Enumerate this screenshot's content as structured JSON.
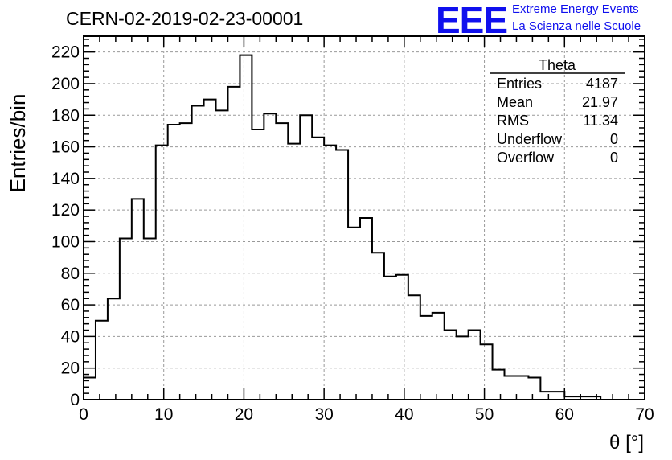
{
  "header": {
    "run_title": "CERN-02-2019-02-23-00001",
    "logo_text": "EEE",
    "logo_line1": "Extreme Energy Events",
    "logo_line2": "La Scienza nelle Scuole",
    "logo_color": "#1010ee"
  },
  "stats_box": {
    "title": "Theta",
    "rows": [
      {
        "label": "Entries",
        "value": "4187"
      },
      {
        "label": "Mean",
        "value": "21.97"
      },
      {
        "label": "RMS",
        "value": "11.34"
      },
      {
        "label": "Underflow",
        "value": "0"
      },
      {
        "label": "Overflow",
        "value": "0"
      }
    ]
  },
  "chart_data": {
    "type": "bar",
    "title": "CERN-02-2019-02-23-00001",
    "xlabel": "θ [°]",
    "ylabel": "Entries/bin",
    "xlim": [
      0,
      70
    ],
    "ylim": [
      0,
      230
    ],
    "grid": true,
    "bin_width": 1.5,
    "bin_start": 0,
    "x_ticks": [
      0,
      10,
      20,
      30,
      40,
      50,
      60,
      70
    ],
    "y_ticks": [
      0,
      20,
      40,
      60,
      80,
      100,
      120,
      140,
      160,
      180,
      200,
      220
    ],
    "series": [
      {
        "name": "Theta",
        "values": [
          14,
          50,
          64,
          102,
          127,
          102,
          161,
          174,
          175,
          186,
          190,
          183,
          198,
          218,
          171,
          181,
          175,
          162,
          180,
          166,
          161,
          158,
          109,
          115,
          93,
          78,
          79,
          66,
          53,
          55,
          44,
          40,
          44,
          35,
          19,
          15,
          15,
          14,
          5,
          5,
          2,
          2,
          2,
          0,
          0,
          0
        ]
      }
    ]
  }
}
